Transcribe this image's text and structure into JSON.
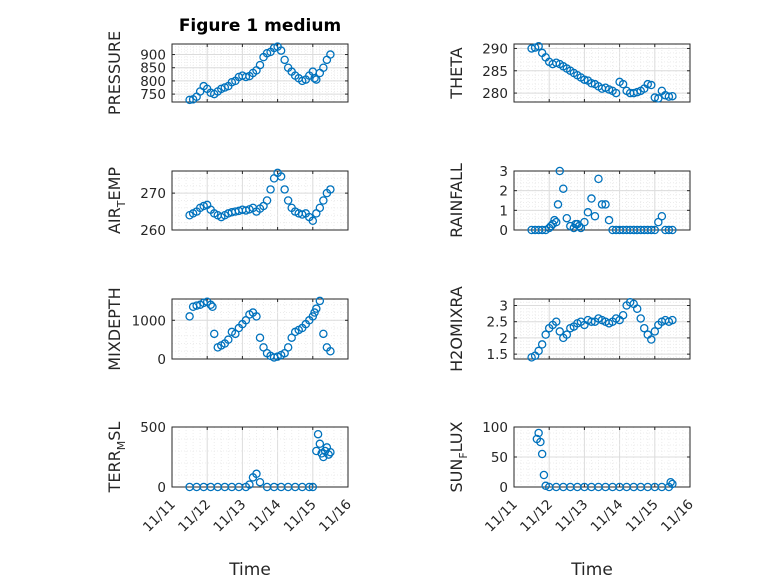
{
  "chart_data": [
    {
      "type": "scatter",
      "title": "Figure 1 medium",
      "ylabel": "PRESSURE",
      "ylim": [
        720,
        940
      ],
      "yticks": [
        750,
        800,
        850,
        900
      ],
      "xlim": [
        11,
        16
      ],
      "grid": true,
      "x": [
        11.5,
        11.6,
        11.7,
        11.8,
        11.9,
        12.0,
        12.1,
        12.2,
        12.3,
        12.4,
        12.5,
        12.6,
        12.7,
        12.8,
        12.9,
        13.0,
        13.1,
        13.2,
        13.3,
        13.4,
        13.5,
        13.6,
        13.7,
        13.8,
        13.9,
        14.0,
        14.1,
        14.2,
        14.3,
        14.4,
        14.5,
        14.6,
        14.7,
        14.8,
        14.9,
        15.0,
        15.05,
        15.1,
        15.2,
        15.3,
        15.4,
        15.5
      ],
      "y": [
        728,
        730,
        740,
        760,
        780,
        770,
        755,
        750,
        760,
        770,
        775,
        780,
        795,
        800,
        815,
        820,
        815,
        818,
        830,
        840,
        860,
        890,
        905,
        910,
        925,
        930,
        915,
        880,
        850,
        835,
        820,
        810,
        800,
        805,
        820,
        835,
        810,
        805,
        830,
        850,
        880,
        900
      ]
    },
    {
      "type": "scatter",
      "ylabel": "THETA",
      "ylim": [
        278,
        291
      ],
      "yticks": [
        280,
        285,
        290
      ],
      "xlim": [
        11,
        16
      ],
      "grid": true,
      "x": [
        11.5,
        11.6,
        11.7,
        11.8,
        11.9,
        12.0,
        12.1,
        12.2,
        12.3,
        12.4,
        12.5,
        12.6,
        12.7,
        12.8,
        12.9,
        13.0,
        13.1,
        13.2,
        13.3,
        13.4,
        13.5,
        13.6,
        13.7,
        13.8,
        13.9,
        14.0,
        14.1,
        14.2,
        14.3,
        14.4,
        14.5,
        14.6,
        14.7,
        14.8,
        14.9,
        15.0,
        15.1,
        15.2,
        15.3,
        15.4,
        15.5
      ],
      "y": [
        290,
        290.2,
        290.5,
        289,
        288,
        287,
        286.5,
        286.8,
        286.5,
        286,
        285.5,
        285,
        284.5,
        284,
        283.5,
        283,
        282.8,
        282.2,
        282,
        281.5,
        281,
        281.2,
        280.8,
        280.5,
        280,
        282.5,
        282,
        280.5,
        280,
        280,
        280.2,
        280.5,
        281,
        282,
        281.8,
        279,
        278.8,
        280.5,
        279.5,
        279.2,
        279.3
      ]
    },
    {
      "type": "scatter",
      "ylabel": "AIR_TEMP",
      "ylim": [
        260,
        276
      ],
      "yticks": [
        260,
        270
      ],
      "xlim": [
        11,
        16
      ],
      "grid": true,
      "x": [
        11.5,
        11.6,
        11.7,
        11.8,
        11.9,
        12.0,
        12.1,
        12.2,
        12.3,
        12.4,
        12.5,
        12.6,
        12.7,
        12.8,
        12.9,
        13.0,
        13.1,
        13.2,
        13.3,
        13.4,
        13.5,
        13.6,
        13.7,
        13.8,
        13.9,
        14.0,
        14.1,
        14.2,
        14.3,
        14.4,
        14.5,
        14.6,
        14.7,
        14.8,
        14.9,
        15.0,
        15.1,
        15.2,
        15.3,
        15.4,
        15.5
      ],
      "y": [
        264,
        264.5,
        265,
        266,
        266.5,
        266.8,
        265.5,
        264.5,
        264,
        263.5,
        264,
        264.5,
        264.8,
        265,
        265.2,
        265.5,
        265.3,
        265.6,
        266,
        265,
        265.8,
        266.5,
        268,
        271,
        274,
        275.5,
        274.5,
        271,
        268,
        266,
        265,
        264.5,
        264.2,
        264.5,
        263.5,
        262.5,
        264.5,
        266,
        268,
        270,
        271
      ]
    },
    {
      "type": "scatter",
      "ylabel": "RAINFALL",
      "ylim": [
        0,
        3
      ],
      "yticks": [
        0,
        1,
        2,
        3
      ],
      "xlim": [
        11,
        16
      ],
      "grid": true,
      "x": [
        11.5,
        11.6,
        11.7,
        11.8,
        11.9,
        12.0,
        12.05,
        12.1,
        12.15,
        12.2,
        12.25,
        12.3,
        12.4,
        12.5,
        12.6,
        12.7,
        12.75,
        12.8,
        12.85,
        12.9,
        13.0,
        13.1,
        13.2,
        13.3,
        13.4,
        13.5,
        13.6,
        13.7,
        13.8,
        13.9,
        14.0,
        14.1,
        14.2,
        14.3,
        14.4,
        14.5,
        14.6,
        14.7,
        14.8,
        14.9,
        15.0,
        15.1,
        15.2,
        15.3,
        15.4,
        15.5
      ],
      "y": [
        0,
        0,
        0,
        0,
        0,
        0.1,
        0.2,
        0.3,
        0.5,
        0.4,
        1.3,
        3.0,
        2.1,
        0.6,
        0.2,
        0.1,
        0.3,
        0.3,
        0.2,
        0.1,
        0.4,
        0.9,
        1.6,
        0.7,
        2.6,
        1.3,
        1.3,
        0.5,
        0,
        0,
        0,
        0,
        0,
        0,
        0,
        0,
        0,
        0,
        0,
        0,
        0,
        0.4,
        0.7,
        0,
        0,
        0
      ]
    },
    {
      "type": "scatter",
      "ylabel": "MIXDEPTH",
      "ylim": [
        0,
        1550
      ],
      "yticks": [
        0,
        1000
      ],
      "xlim": [
        11,
        16
      ],
      "grid": true,
      "x": [
        11.5,
        11.6,
        11.7,
        11.8,
        11.9,
        12.0,
        12.1,
        12.15,
        12.2,
        12.3,
        12.4,
        12.5,
        12.6,
        12.7,
        12.8,
        12.9,
        13.0,
        13.1,
        13.2,
        13.3,
        13.4,
        13.5,
        13.6,
        13.7,
        13.8,
        13.9,
        14.0,
        14.1,
        14.2,
        14.3,
        14.4,
        14.5,
        14.6,
        14.7,
        14.8,
        14.9,
        15.0,
        15.05,
        15.1,
        15.2,
        15.3,
        15.4,
        15.5
      ],
      "y": [
        1100,
        1350,
        1380,
        1400,
        1450,
        1480,
        1400,
        1350,
        650,
        300,
        350,
        400,
        500,
        700,
        650,
        800,
        900,
        1000,
        1150,
        1200,
        1100,
        550,
        300,
        150,
        80,
        40,
        60,
        100,
        150,
        300,
        550,
        700,
        750,
        800,
        900,
        1000,
        1100,
        1200,
        1300,
        1500,
        650,
        300,
        200
      ]
    },
    {
      "type": "scatter",
      "ylabel": "H2OMIXRA",
      "ylim": [
        1.35,
        3.2
      ],
      "yticks": [
        1.5,
        2,
        2.5,
        3
      ],
      "xlim": [
        11,
        16
      ],
      "grid": true,
      "x": [
        11.5,
        11.6,
        11.7,
        11.8,
        11.9,
        12.0,
        12.1,
        12.2,
        12.3,
        12.4,
        12.5,
        12.6,
        12.7,
        12.8,
        12.9,
        13.0,
        13.1,
        13.2,
        13.3,
        13.4,
        13.5,
        13.6,
        13.7,
        13.8,
        13.9,
        14.0,
        14.1,
        14.2,
        14.3,
        14.4,
        14.5,
        14.6,
        14.7,
        14.8,
        14.9,
        15.0,
        15.1,
        15.2,
        15.3,
        15.4,
        15.5
      ],
      "y": [
        1.4,
        1.45,
        1.6,
        1.8,
        2.1,
        2.3,
        2.4,
        2.5,
        2.2,
        2.0,
        2.1,
        2.3,
        2.35,
        2.45,
        2.5,
        2.4,
        2.55,
        2.5,
        2.5,
        2.6,
        2.55,
        2.5,
        2.45,
        2.5,
        2.6,
        2.55,
        2.7,
        3.0,
        3.1,
        3.05,
        2.9,
        2.6,
        2.3,
        2.1,
        1.95,
        2.2,
        2.4,
        2.5,
        2.55,
        2.5,
        2.55
      ]
    },
    {
      "type": "scatter",
      "ylabel": "TERR_MSL",
      "ylim": [
        0,
        500
      ],
      "yticks": [
        0,
        500
      ],
      "xlim": [
        11,
        16
      ],
      "grid": true,
      "x": [
        11.5,
        11.7,
        11.9,
        12.1,
        12.3,
        12.5,
        12.7,
        12.9,
        13.1,
        13.2,
        13.3,
        13.4,
        13.5,
        13.7,
        13.9,
        14.1,
        14.3,
        14.5,
        14.7,
        14.9,
        15.0,
        15.1,
        15.15,
        15.2,
        15.25,
        15.3,
        15.35,
        15.4,
        15.45,
        15.5
      ],
      "y": [
        0,
        0,
        0,
        0,
        0,
        0,
        0,
        0,
        0,
        20,
        80,
        110,
        40,
        0,
        0,
        0,
        0,
        0,
        0,
        0,
        0,
        300,
        440,
        360,
        280,
        250,
        300,
        330,
        270,
        290
      ]
    },
    {
      "type": "scatter",
      "ylabel": "SUN_FLUX",
      "ylim": [
        0,
        100
      ],
      "yticks": [
        0,
        50,
        100
      ],
      "xlim": [
        11,
        16
      ],
      "grid": true,
      "x": [
        11.65,
        11.7,
        11.75,
        11.8,
        11.85,
        11.9,
        12.0,
        12.2,
        12.4,
        12.6,
        12.8,
        13.0,
        13.2,
        13.4,
        13.6,
        13.8,
        14.0,
        14.2,
        14.4,
        14.6,
        14.8,
        15.0,
        15.2,
        15.4,
        15.45,
        15.5
      ],
      "y": [
        80,
        90,
        75,
        55,
        20,
        2,
        0,
        0,
        0,
        0,
        0,
        0,
        0,
        0,
        0,
        0,
        0,
        0,
        0,
        0,
        0,
        0,
        0,
        0,
        8,
        5
      ]
    }
  ],
  "axes": {
    "xticklabels": [
      "11/11",
      "11/12",
      "11/13",
      "11/14",
      "11/15",
      "11/16"
    ],
    "xlabel": "Time",
    "marker_color": "#0072BD",
    "axis_color": "#262626",
    "grid_color": "#e0e0e0"
  }
}
